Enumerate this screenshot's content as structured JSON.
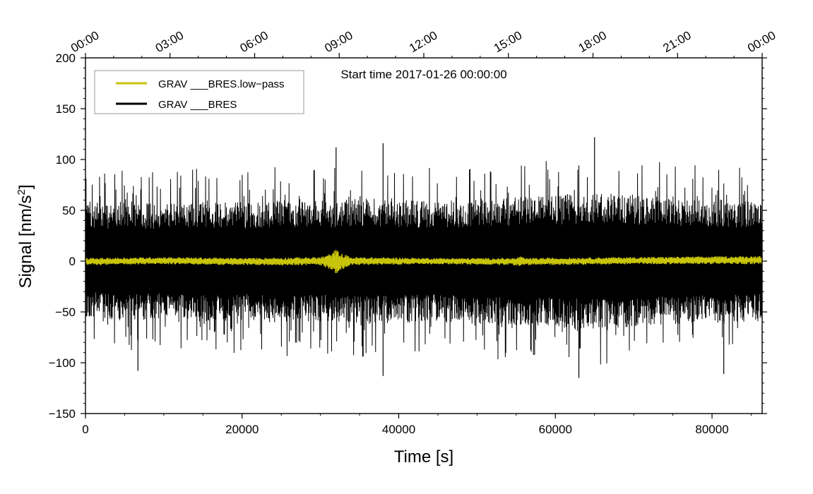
{
  "chart_data": {
    "type": "line",
    "annotation": "Start time 2017-01-26 00:00:00",
    "xlabel": "Time [s]",
    "ylabel_main": "Signal [nm/s",
    "ylabel_sup": "2",
    "ylabel_end": "]",
    "xlim": [
      0,
      86400
    ],
    "ylim": [
      -150,
      200
    ],
    "x_ticks": [
      0,
      20000,
      40000,
      60000,
      80000
    ],
    "x_tick_labels": [
      "0",
      "20000",
      "40000",
      "60000",
      "80000"
    ],
    "y_ticks": [
      -150,
      -100,
      -50,
      0,
      50,
      100,
      150,
      200
    ],
    "y_tick_labels": [
      "−150",
      "−100",
      "−50",
      "0",
      "50",
      "100",
      "150",
      "200"
    ],
    "top_ticks": [
      0,
      10800,
      21600,
      32400,
      43200,
      54000,
      64800,
      75600,
      86400
    ],
    "top_tick_labels": [
      "00:00",
      "03:00",
      "06:00",
      "09:00",
      "12:00",
      "15:00",
      "18:00",
      "21:00",
      "00:00"
    ],
    "legend_position": "top-left",
    "series": [
      {
        "name": "GRAV ___BRES.low−pass",
        "color": "#c8c40a",
        "envelope": {
          "x": [
            0,
            10000,
            20000,
            30000,
            31500,
            32000,
            32500,
            34000,
            45000,
            55000,
            55500,
            56000,
            70000,
            86400
          ],
          "upper": [
            3,
            4,
            3,
            4,
            8,
            12,
            8,
            4,
            3,
            3,
            5,
            3,
            4,
            5
          ],
          "lower": [
            -4,
            -3,
            -4,
            -4,
            -9,
            -13,
            -9,
            -4,
            -3,
            -4,
            -6,
            -4,
            -3,
            -3
          ]
        }
      },
      {
        "name": "GRAV ___BRES",
        "color": "#000000",
        "envelope": {
          "x": [
            0,
            5000,
            10000,
            15000,
            20000,
            25000,
            30000,
            35000,
            40000,
            45000,
            50000,
            55000,
            60000,
            65000,
            70000,
            75000,
            80000,
            86400
          ],
          "upper": [
            55,
            58,
            55,
            60,
            58,
            62,
            60,
            62,
            60,
            58,
            62,
            62,
            65,
            68,
            65,
            62,
            60,
            58
          ],
          "lower": [
            -55,
            -60,
            -58,
            -60,
            -58,
            -60,
            -60,
            -62,
            -62,
            -60,
            -62,
            -64,
            -65,
            -68,
            -66,
            -62,
            -62,
            -60
          ]
        },
        "peaks": [
          {
            "x": 32000,
            "y": 112
          },
          {
            "x": 38000,
            "y": 116
          },
          {
            "x": 65000,
            "y": 122
          },
          {
            "x": 63000,
            "y": -115
          },
          {
            "x": 6700,
            "y": -108
          },
          {
            "x": 38000,
            "y": -113
          },
          {
            "x": 81500,
            "y": -111
          }
        ]
      }
    ]
  }
}
